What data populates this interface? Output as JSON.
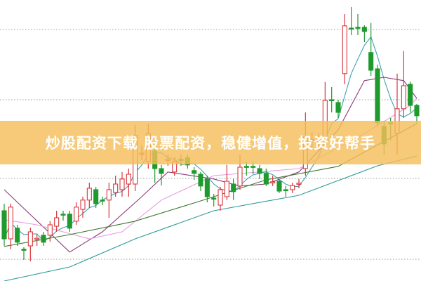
{
  "banner": {
    "text": "炒股配资下载 股票配资，稳健增值，投资好帮手"
  },
  "chart_data": {
    "type": "candlestick",
    "title": "",
    "xlabel": "",
    "ylabel": "",
    "ylim": [
      0,
      100
    ],
    "grid": "horizontal dotted",
    "colors": {
      "up": "#d8363c",
      "down": "#1f9a2c",
      "ma5": "#3fa0b0",
      "ma10": "#8a3c78",
      "ma20": "#e69be0",
      "ma30": "#3c7a2c",
      "ma60": "#2f9a9a"
    },
    "candles": [
      [
        25,
        15,
        27.5,
        12.5
      ],
      [
        15,
        26.3,
        27.5,
        11.3
      ],
      [
        18.8,
        13.8,
        20,
        12.5
      ],
      [
        11.3,
        11,
        12,
        7.5
      ],
      [
        12.5,
        17.5,
        19,
        7
      ],
      [
        15,
        15.2,
        16.5,
        12.5
      ],
      [
        16.3,
        13.8,
        17.5,
        12.5
      ],
      [
        16.3,
        20,
        21.3,
        14
      ],
      [
        19.5,
        22.5,
        25,
        17.5
      ],
      [
        23.8,
        23.5,
        25,
        21.5
      ],
      [
        23.8,
        18.8,
        25,
        17.5
      ],
      [
        21.3,
        26.3,
        28,
        20
      ],
      [
        25.5,
        28.8,
        30,
        22.5
      ],
      [
        28.8,
        33,
        35,
        26
      ],
      [
        32.5,
        27.5,
        33.5,
        26
      ],
      [
        28.8,
        28.5,
        30,
        27
      ],
      [
        28.8,
        32.5,
        35,
        22.5
      ],
      [
        31.5,
        34.5,
        37.5,
        30
      ],
      [
        32.5,
        36.3,
        38.8,
        30
      ],
      [
        34.5,
        38,
        40,
        30
      ],
      [
        34.5,
        51.8,
        55.5,
        32
      ],
      [
        45.3,
        45.5,
        48,
        43
      ],
      [
        42.5,
        52.5,
        56,
        40
      ],
      [
        46.3,
        40,
        49,
        35
      ],
      [
        40,
        38.3,
        41.3,
        34
      ],
      [
        43,
        43.3,
        45,
        41
      ],
      [
        38.8,
        42.5,
        44,
        37.5
      ],
      [
        43.3,
        43,
        45,
        41
      ],
      [
        43.8,
        41.3,
        45,
        40
      ],
      [
        39.3,
        38.3,
        40.5,
        36
      ],
      [
        38,
        33.8,
        38.8,
        32
      ],
      [
        36.3,
        30,
        37.5,
        28
      ],
      [
        29.5,
        29.3,
        31,
        26.5
      ],
      [
        27,
        32.5,
        33.5,
        25
      ],
      [
        30,
        35.5,
        41.3,
        28.8
      ],
      [
        34.5,
        31.8,
        36.3,
        28.8
      ],
      [
        33.8,
        40.5,
        45,
        32.5
      ],
      [
        40.8,
        40.5,
        42.5,
        37.5
      ],
      [
        40.8,
        40.5,
        42.5,
        38
      ],
      [
        40,
        38.3,
        41.3,
        36.3
      ],
      [
        38.3,
        34.5,
        40,
        33.8
      ],
      [
        35,
        35.3,
        37.5,
        33.8
      ],
      [
        35.5,
        32,
        36.3,
        31.3
      ],
      [
        32.5,
        32.3,
        33.8,
        30
      ],
      [
        32.5,
        34,
        35,
        31.3
      ],
      [
        34.5,
        34.8,
        36.3,
        33
      ],
      [
        40,
        51.3,
        60,
        37.5
      ],
      [
        50,
        50.3,
        53,
        47
      ],
      [
        49.8,
        50,
        52.5,
        46
      ],
      [
        51.3,
        64.3,
        70.8,
        49
      ],
      [
        64.5,
        64.3,
        69,
        60
      ],
      [
        63.5,
        60,
        64.5,
        58
      ],
      [
        73.8,
        90.8,
        95,
        70
      ],
      [
        90,
        89.8,
        97.5,
        87.5
      ],
      [
        90.3,
        90,
        95,
        87.5
      ],
      [
        90.3,
        88.8,
        91,
        85
      ],
      [
        81.3,
        75,
        91.8,
        73
      ],
      [
        75.5,
        56.3,
        77,
        55
      ],
      [
        55,
        48.8,
        57,
        45
      ],
      [
        56.3,
        56,
        58,
        50
      ],
      [
        52.5,
        61.3,
        73.8,
        45
      ],
      [
        61.3,
        69.5,
        81.8,
        58
      ],
      [
        70,
        62.5,
        71,
        60
      ],
      [
        62.5,
        58.8,
        63,
        56
      ]
    ],
    "moving_averages": [
      {
        "key": "ma10",
        "points": [
          [
            1,
            32.5
          ],
          [
            11,
            10.3
          ],
          [
            16,
            17.5
          ],
          [
            22,
            30
          ],
          [
            26,
            38.8
          ],
          [
            33,
            36.3
          ],
          [
            37,
            33.8
          ],
          [
            41,
            34.5
          ],
          [
            46,
            38.8
          ],
          [
            52,
            53.8
          ],
          [
            56,
            71.3
          ],
          [
            59,
            72.5
          ],
          [
            62,
            71.3
          ],
          [
            64,
            65
          ]
        ]
      },
      {
        "key": "ma20",
        "points": [
          [
            1,
            21.8
          ],
          [
            6,
            20
          ],
          [
            14,
            15
          ],
          [
            19,
            17.5
          ],
          [
            25,
            28.8
          ],
          [
            33,
            37.5
          ],
          [
            41,
            39
          ],
          [
            46,
            40
          ],
          [
            56,
            52.5
          ],
          [
            63,
            62.5
          ],
          [
            64,
            65
          ]
        ]
      },
      {
        "key": "ma30",
        "points": [
          [
            1,
            12.3
          ],
          [
            11,
            16.5
          ],
          [
            21,
            21.3
          ],
          [
            31,
            28.5
          ],
          [
            41,
            36
          ],
          [
            52,
            40.8
          ],
          [
            64,
            56
          ]
        ]
      },
      {
        "key": "ma60",
        "points": [
          [
            1,
            0
          ],
          [
            11,
            5
          ],
          [
            21,
            15
          ],
          [
            33,
            25
          ],
          [
            46,
            30.5
          ],
          [
            58,
            41
          ],
          [
            64,
            44.5
          ]
        ]
      }
    ]
  }
}
